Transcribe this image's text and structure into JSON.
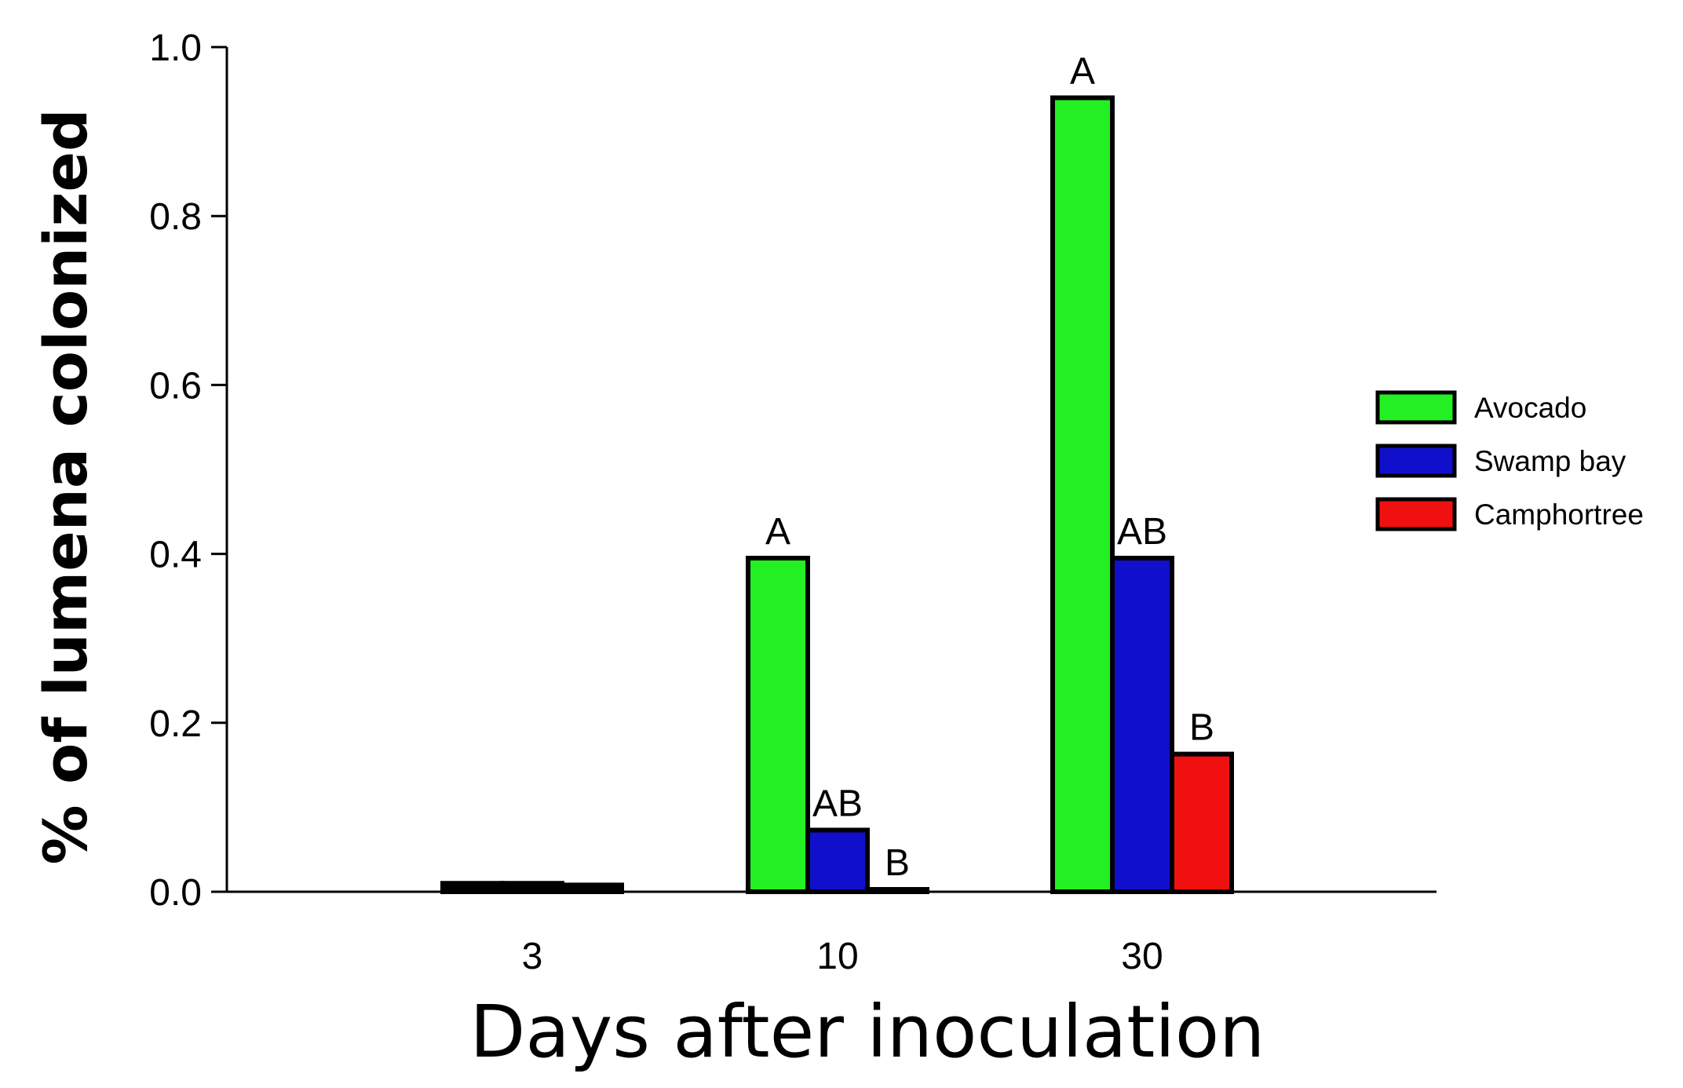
{
  "chart_data": {
    "type": "bar",
    "categories": [
      "3",
      "10",
      "30"
    ],
    "series": [
      {
        "name": "Avocado",
        "color": "#22f022",
        "values": [
          0.01,
          0.395,
          0.94
        ],
        "labels": [
          "",
          "A",
          "A"
        ]
      },
      {
        "name": "Swamp bay",
        "color": "#1010cc",
        "values": [
          0.01,
          0.073,
          0.395
        ],
        "labels": [
          "",
          "AB",
          "AB"
        ]
      },
      {
        "name": "Camphortree",
        "color": "#f01010",
        "values": [
          0.008,
          0.002,
          0.163
        ],
        "labels": [
          "",
          "B",
          "B"
        ]
      }
    ],
    "title": "",
    "xlabel": "Days after inoculation",
    "ylabel": "% of lumena colonized",
    "ylim": [
      0,
      1.0
    ],
    "yticks": [
      "0.0",
      "0.2",
      "0.4",
      "0.6",
      "0.8",
      "1.0"
    ],
    "grid": false,
    "legend_position": "right"
  }
}
